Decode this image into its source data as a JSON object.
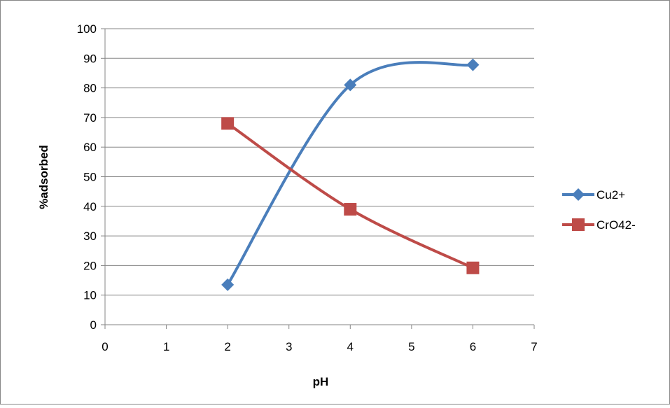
{
  "chart_data": {
    "type": "line",
    "title": "",
    "xlabel": "pH",
    "ylabel": "%adsorbed",
    "xlim": [
      0,
      7
    ],
    "ylim": [
      0,
      100
    ],
    "xticks": [
      0,
      1,
      2,
      3,
      4,
      5,
      6,
      7
    ],
    "yticks": [
      0,
      10,
      20,
      30,
      40,
      50,
      60,
      70,
      80,
      90,
      100
    ],
    "grid": "horizontal",
    "smooth": true,
    "legend_position": "right",
    "x": [
      2,
      4,
      6
    ],
    "series": [
      {
        "name": "Cu2+",
        "values": [
          13.5,
          81,
          87.8
        ],
        "color": "#4a7ebb",
        "marker": "diamond"
      },
      {
        "name": "CrO42-",
        "values": [
          68,
          39,
          19.2
        ],
        "color": "#be4b48",
        "marker": "square"
      }
    ]
  }
}
